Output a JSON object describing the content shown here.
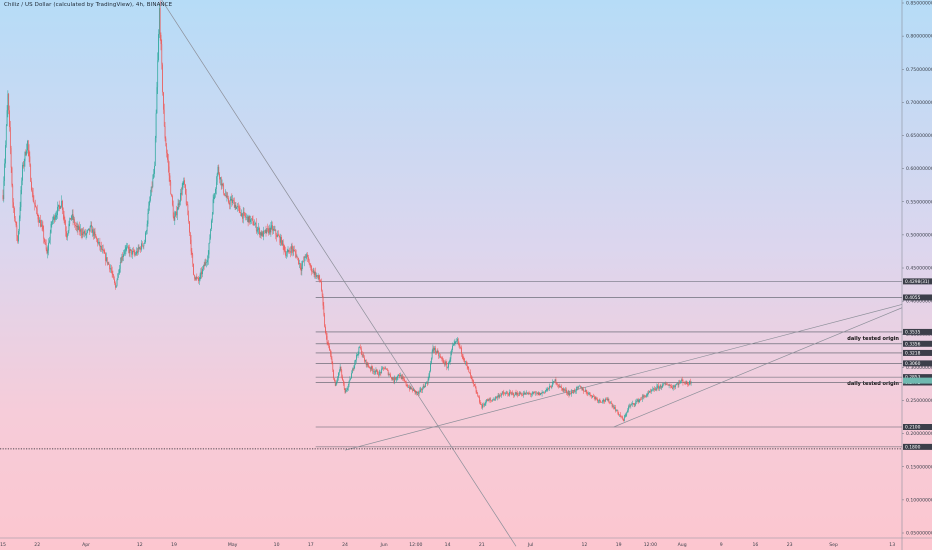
{
  "title": "Chiliz / US Dollar (calculated by TradingView), 4h, BINANCE",
  "colors": {
    "bull": "#26a69a",
    "bear": "#ef5350",
    "drawing": "#8c8f99",
    "level": "#565b66",
    "tag": "#3c3f4a",
    "current_tag": "#6fb9b0"
  },
  "chart_data": {
    "type": "candlestick",
    "title": "Chiliz / US Dollar (calculated by TradingView), 4h, BINANCE",
    "y_scale": "linear",
    "y_axis_labels": [
      "0.85000000",
      "0.80000000",
      "0.75000000",
      "0.70000000",
      "0.65000000",
      "0.60000000",
      "0.55000000",
      "0.50000000",
      "0.45000000",
      "0.40000000",
      "0.35000000",
      "0.30000000",
      "0.25000000",
      "0.20000000",
      "0.15000000",
      "0.10000000",
      "0.05000000"
    ],
    "y_axis_values": [
      0.85,
      0.8,
      0.75,
      0.7,
      0.65,
      0.6,
      0.55,
      0.5,
      0.45,
      0.4,
      0.35,
      0.3,
      0.25,
      0.2,
      0.15,
      0.1,
      0.05
    ],
    "x_axis": [
      {
        "label": "15",
        "day": 0
      },
      {
        "label": "22",
        "day": 7
      },
      {
        "label": "Apr",
        "day": 17
      },
      {
        "label": "12",
        "day": 28
      },
      {
        "label": "19",
        "day": 35
      },
      {
        "label": "May",
        "day": 47
      },
      {
        "label": "10",
        "day": 56
      },
      {
        "label": "17",
        "day": 63
      },
      {
        "label": "24",
        "day": 70
      },
      {
        "label": "Jun",
        "day": 78
      },
      {
        "label": "12:00",
        "day": 84.5
      },
      {
        "label": "14",
        "day": 91
      },
      {
        "label": "21",
        "day": 98
      },
      {
        "label": "Jul",
        "day": 108
      },
      {
        "label": "12",
        "day": 119
      },
      {
        "label": "19",
        "day": 126
      },
      {
        "label": "12:00",
        "day": 132.5
      },
      {
        "label": "Aug",
        "day": 139
      },
      {
        "label": "9",
        "day": 147
      },
      {
        "label": "16",
        "day": 154
      },
      {
        "label": "23",
        "day": 161
      },
      {
        "label": "Sep",
        "day": 170
      },
      {
        "label": "13",
        "day": 182
      }
    ],
    "x_range_days": [
      0,
      184
    ],
    "price_path": [
      [
        0,
        0.56
      ],
      [
        1,
        0.71
      ],
      [
        2,
        0.55
      ],
      [
        3,
        0.49
      ],
      [
        4,
        0.6
      ],
      [
        5,
        0.64
      ],
      [
        6,
        0.56
      ],
      [
        7,
        0.53
      ],
      [
        8,
        0.51
      ],
      [
        9,
        0.47
      ],
      [
        10,
        0.52
      ],
      [
        12,
        0.55
      ],
      [
        13,
        0.5
      ],
      [
        14,
        0.53
      ],
      [
        15,
        0.51
      ],
      [
        17,
        0.5
      ],
      [
        18,
        0.51
      ],
      [
        20,
        0.48
      ],
      [
        22,
        0.45
      ],
      [
        23,
        0.42
      ],
      [
        24,
        0.46
      ],
      [
        25,
        0.48
      ],
      [
        27,
        0.47
      ],
      [
        29,
        0.49
      ],
      [
        30,
        0.55
      ],
      [
        31,
        0.6
      ],
      [
        32,
        0.84
      ],
      [
        33,
        0.66
      ],
      [
        34,
        0.59
      ],
      [
        35,
        0.52
      ],
      [
        36,
        0.55
      ],
      [
        37,
        0.58
      ],
      [
        38,
        0.52
      ],
      [
        39,
        0.44
      ],
      [
        40,
        0.43
      ],
      [
        41,
        0.45
      ],
      [
        42,
        0.47
      ],
      [
        43,
        0.55
      ],
      [
        44,
        0.6
      ],
      [
        45,
        0.57
      ],
      [
        46,
        0.55
      ],
      [
        47,
        0.55
      ],
      [
        48,
        0.54
      ],
      [
        49,
        0.53
      ],
      [
        51,
        0.52
      ],
      [
        53,
        0.5
      ],
      [
        55,
        0.51
      ],
      [
        57,
        0.49
      ],
      [
        58,
        0.47
      ],
      [
        59,
        0.48
      ],
      [
        60,
        0.47
      ],
      [
        61,
        0.45
      ],
      [
        62,
        0.47
      ],
      [
        63,
        0.45
      ],
      [
        64,
        0.44
      ],
      [
        65,
        0.43
      ],
      [
        66,
        0.35
      ],
      [
        67,
        0.32
      ],
      [
        68,
        0.27
      ],
      [
        69,
        0.3
      ],
      [
        70,
        0.26
      ],
      [
        71,
        0.28
      ],
      [
        72,
        0.31
      ],
      [
        73,
        0.33
      ],
      [
        74,
        0.31
      ],
      [
        75,
        0.3
      ],
      [
        77,
        0.29
      ],
      [
        78,
        0.3
      ],
      [
        79,
        0.29
      ],
      [
        80,
        0.28
      ],
      [
        81,
        0.29
      ],
      [
        83,
        0.27
      ],
      [
        85,
        0.26
      ],
      [
        87,
        0.28
      ],
      [
        88,
        0.33
      ],
      [
        89,
        0.32
      ],
      [
        90,
        0.31
      ],
      [
        91,
        0.3
      ],
      [
        92,
        0.33
      ],
      [
        93,
        0.34
      ],
      [
        94,
        0.32
      ],
      [
        95,
        0.3
      ],
      [
        96,
        0.28
      ],
      [
        97,
        0.26
      ],
      [
        98,
        0.24
      ],
      [
        99,
        0.25
      ],
      [
        100,
        0.25
      ],
      [
        102,
        0.26
      ],
      [
        104,
        0.26
      ],
      [
        106,
        0.26
      ],
      [
        108,
        0.26
      ],
      [
        110,
        0.26
      ],
      [
        112,
        0.27
      ],
      [
        113,
        0.28
      ],
      [
        114,
        0.27
      ],
      [
        116,
        0.26
      ],
      [
        118,
        0.27
      ],
      [
        120,
        0.26
      ],
      [
        122,
        0.25
      ],
      [
        124,
        0.25
      ],
      [
        126,
        0.23
      ],
      [
        127,
        0.22
      ],
      [
        128,
        0.24
      ],
      [
        130,
        0.25
      ],
      [
        132,
        0.26
      ],
      [
        134,
        0.27
      ],
      [
        136,
        0.275
      ],
      [
        137,
        0.27
      ],
      [
        138,
        0.275
      ],
      [
        139,
        0.28
      ],
      [
        140,
        0.275
      ],
      [
        141,
        0.28
      ]
    ],
    "horizontal_levels": [
      {
        "value": 0.4298,
        "label": "0.4298(31)"
      },
      {
        "value": 0.4055,
        "label": "0.4055"
      },
      {
        "value": 0.3535,
        "label": "0.3535",
        "note": "daily tested origin"
      },
      {
        "value": 0.3356,
        "label": "0.3356"
      },
      {
        "value": 0.3218,
        "label": "0.3218"
      },
      {
        "value": 0.306,
        "label": "0.3060"
      },
      {
        "value": 0.2853,
        "label": "0.2853",
        "note": "daily tested origin"
      },
      {
        "value": 0.2772,
        "label": "0.2772"
      },
      {
        "value": 0.21,
        "label": "0.2100"
      },
      {
        "value": 0.18,
        "label": "0.1800"
      }
    ],
    "trend_lines": [
      {
        "from": [
          32,
          0.86
        ],
        "to": [
          105,
          0.03
        ]
      },
      {
        "from": [
          70,
          0.175
        ],
        "to": [
          184,
          0.395
        ]
      },
      {
        "from": [
          125,
          0.21
        ],
        "to": [
          184,
          0.39
        ]
      }
    ],
    "dotted_line": {
      "value": 0.177
    }
  }
}
